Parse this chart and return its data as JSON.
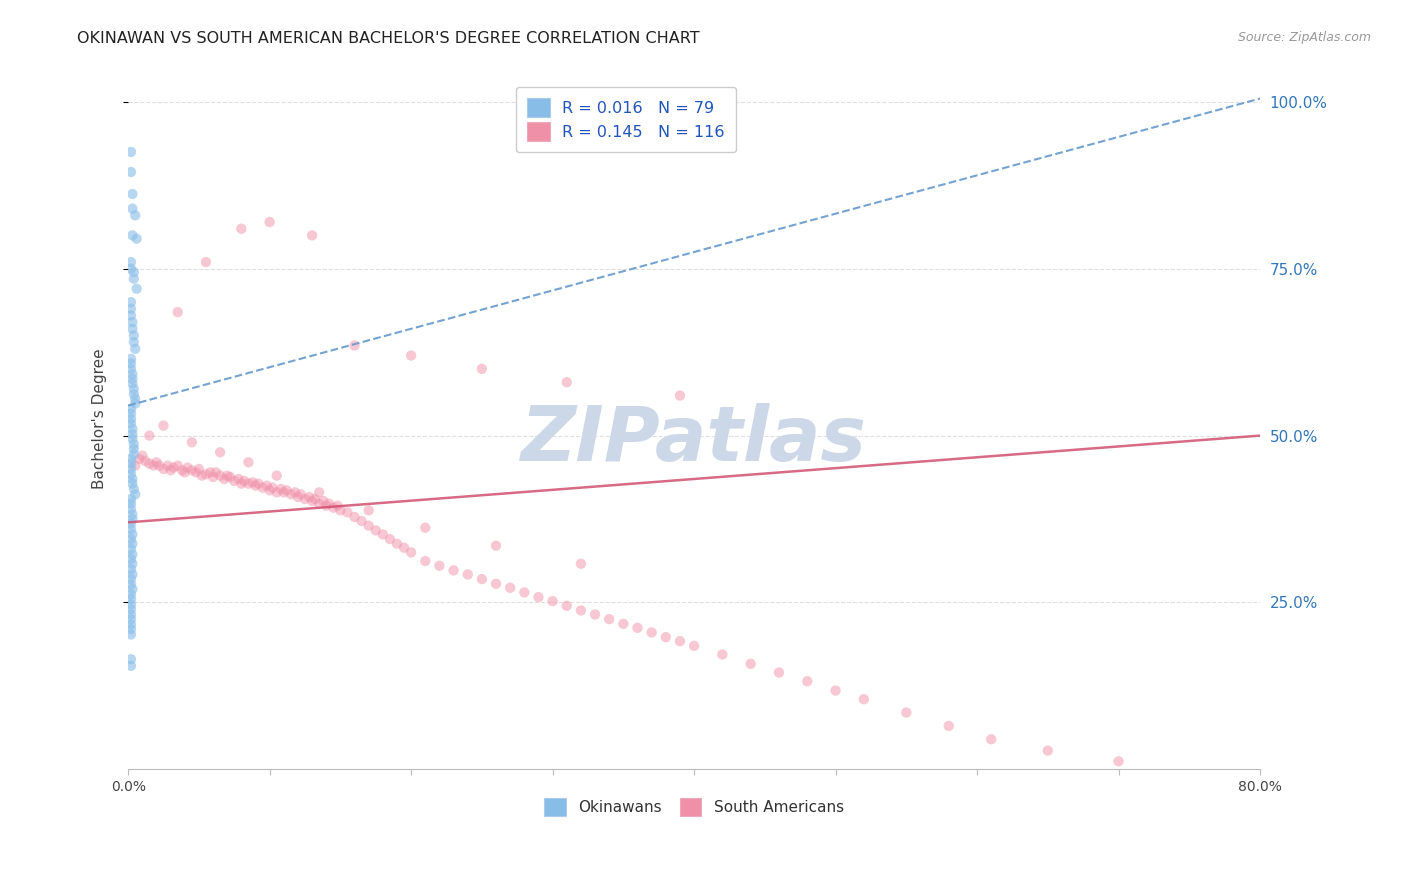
{
  "title": "OKINAWAN VS SOUTH AMERICAN BACHELOR'S DEGREE CORRELATION CHART",
  "source": "Source: ZipAtlas.com",
  "ylabel": "Bachelor's Degree",
  "xlim": [
    0.0,
    0.8
  ],
  "ylim": [
    0.0,
    1.05
  ],
  "xticks": [
    0.0,
    0.1,
    0.2,
    0.3,
    0.4,
    0.5,
    0.6,
    0.7,
    0.8
  ],
  "xticklabels": [
    "0.0%",
    "",
    "",
    "",
    "",
    "",
    "",
    "",
    "80.0%"
  ],
  "yticks_right": [
    0.25,
    0.5,
    0.75,
    1.0
  ],
  "ytick_labels_right": [
    "25.0%",
    "50.0%",
    "75.0%",
    "100.0%"
  ],
  "watermark": "ZIPatlas",
  "legend_label_blue": "R = 0.016   N = 79",
  "legend_label_pink": "R = 0.145   N = 116",
  "legend_labels_bottom": [
    "Okinawans",
    "South Americans"
  ],
  "blue_trend_x": [
    0.0,
    0.8
  ],
  "blue_trend_y": [
    0.545,
    1.005
  ],
  "pink_trend_x": [
    0.0,
    0.8
  ],
  "pink_trend_y": [
    0.37,
    0.5
  ],
  "okinawan_x": [
    0.002,
    0.002,
    0.003,
    0.003,
    0.005,
    0.003,
    0.006,
    0.002,
    0.002,
    0.004,
    0.004,
    0.006,
    0.002,
    0.002,
    0.002,
    0.003,
    0.003,
    0.004,
    0.004,
    0.005,
    0.002,
    0.002,
    0.002,
    0.003,
    0.003,
    0.003,
    0.004,
    0.004,
    0.005,
    0.005,
    0.002,
    0.002,
    0.002,
    0.002,
    0.003,
    0.003,
    0.003,
    0.004,
    0.004,
    0.004,
    0.002,
    0.002,
    0.002,
    0.002,
    0.003,
    0.003,
    0.004,
    0.005,
    0.002,
    0.002,
    0.002,
    0.003,
    0.003,
    0.002,
    0.002,
    0.003,
    0.002,
    0.003,
    0.002,
    0.003,
    0.002,
    0.003,
    0.002,
    0.003,
    0.002,
    0.002,
    0.003,
    0.002,
    0.002,
    0.002,
    0.002,
    0.002,
    0.002,
    0.002,
    0.002,
    0.002,
    0.002,
    0.002
  ],
  "okinawan_y": [
    0.925,
    0.895,
    0.862,
    0.84,
    0.83,
    0.8,
    0.795,
    0.76,
    0.75,
    0.745,
    0.735,
    0.72,
    0.7,
    0.69,
    0.68,
    0.67,
    0.66,
    0.65,
    0.64,
    0.63,
    0.615,
    0.608,
    0.6,
    0.592,
    0.585,
    0.578,
    0.57,
    0.562,
    0.555,
    0.548,
    0.54,
    0.533,
    0.525,
    0.518,
    0.51,
    0.502,
    0.495,
    0.487,
    0.48,
    0.472,
    0.465,
    0.458,
    0.45,
    0.442,
    0.435,
    0.428,
    0.42,
    0.412,
    0.405,
    0.398,
    0.39,
    0.382,
    0.375,
    0.368,
    0.36,
    0.352,
    0.345,
    0.338,
    0.33,
    0.322,
    0.315,
    0.308,
    0.3,
    0.292,
    0.285,
    0.277,
    0.27,
    0.262,
    0.255,
    0.247,
    0.24,
    0.232,
    0.225,
    0.217,
    0.21,
    0.202,
    0.165,
    0.155
  ],
  "southamerican_x": [
    0.005,
    0.008,
    0.01,
    0.012,
    0.015,
    0.018,
    0.02,
    0.022,
    0.025,
    0.028,
    0.03,
    0.032,
    0.035,
    0.038,
    0.04,
    0.042,
    0.045,
    0.048,
    0.05,
    0.052,
    0.055,
    0.058,
    0.06,
    0.062,
    0.065,
    0.068,
    0.07,
    0.072,
    0.075,
    0.078,
    0.08,
    0.082,
    0.085,
    0.088,
    0.09,
    0.092,
    0.095,
    0.098,
    0.1,
    0.102,
    0.105,
    0.108,
    0.11,
    0.112,
    0.115,
    0.118,
    0.12,
    0.122,
    0.125,
    0.128,
    0.13,
    0.132,
    0.135,
    0.138,
    0.14,
    0.142,
    0.145,
    0.148,
    0.15,
    0.155,
    0.16,
    0.165,
    0.17,
    0.175,
    0.18,
    0.185,
    0.19,
    0.195,
    0.2,
    0.21,
    0.22,
    0.23,
    0.24,
    0.25,
    0.26,
    0.27,
    0.28,
    0.29,
    0.3,
    0.31,
    0.32,
    0.33,
    0.34,
    0.35,
    0.36,
    0.37,
    0.38,
    0.39,
    0.4,
    0.42,
    0.44,
    0.46,
    0.48,
    0.5,
    0.52,
    0.55,
    0.58,
    0.61,
    0.65,
    0.7,
    0.035,
    0.055,
    0.08,
    0.1,
    0.13,
    0.16,
    0.2,
    0.25,
    0.31,
    0.39,
    0.015,
    0.025,
    0.045,
    0.065,
    0.085,
    0.105,
    0.135,
    0.17,
    0.21,
    0.26,
    0.32
  ],
  "southamerican_y": [
    0.455,
    0.465,
    0.47,
    0.462,
    0.458,
    0.455,
    0.46,
    0.455,
    0.45,
    0.455,
    0.448,
    0.452,
    0.455,
    0.448,
    0.445,
    0.452,
    0.448,
    0.445,
    0.45,
    0.44,
    0.442,
    0.445,
    0.438,
    0.445,
    0.44,
    0.435,
    0.44,
    0.438,
    0.432,
    0.435,
    0.428,
    0.432,
    0.428,
    0.43,
    0.425,
    0.428,
    0.422,
    0.425,
    0.418,
    0.422,
    0.415,
    0.42,
    0.415,
    0.418,
    0.412,
    0.415,
    0.408,
    0.412,
    0.405,
    0.408,
    0.402,
    0.405,
    0.398,
    0.402,
    0.395,
    0.398,
    0.392,
    0.395,
    0.388,
    0.385,
    0.378,
    0.372,
    0.365,
    0.358,
    0.352,
    0.345,
    0.338,
    0.332,
    0.325,
    0.312,
    0.305,
    0.298,
    0.292,
    0.285,
    0.278,
    0.272,
    0.265,
    0.258,
    0.252,
    0.245,
    0.238,
    0.232,
    0.225,
    0.218,
    0.212,
    0.205,
    0.198,
    0.192,
    0.185,
    0.172,
    0.158,
    0.145,
    0.132,
    0.118,
    0.105,
    0.085,
    0.065,
    0.045,
    0.028,
    0.012,
    0.685,
    0.76,
    0.81,
    0.82,
    0.8,
    0.635,
    0.62,
    0.6,
    0.58,
    0.56,
    0.5,
    0.515,
    0.49,
    0.475,
    0.46,
    0.44,
    0.415,
    0.388,
    0.362,
    0.335,
    0.308
  ],
  "dot_size": 55,
  "blue_color": "#88bde8",
  "pink_color": "#f090a8",
  "blue_edge_color": "#5599cc",
  "pink_edge_color": "#e06080",
  "blue_alpha": 0.6,
  "pink_alpha": 0.5,
  "blue_trend_color": "#6699cc",
  "pink_trend_color": "#d05070",
  "grid_color": "#d8d8d8",
  "background_color": "#ffffff",
  "title_fontsize": 11.5,
  "axis_label_fontsize": 11,
  "tick_fontsize": 10,
  "source_fontsize": 9,
  "watermark_color": "#ccd8e8",
  "watermark_fontsize": 55
}
